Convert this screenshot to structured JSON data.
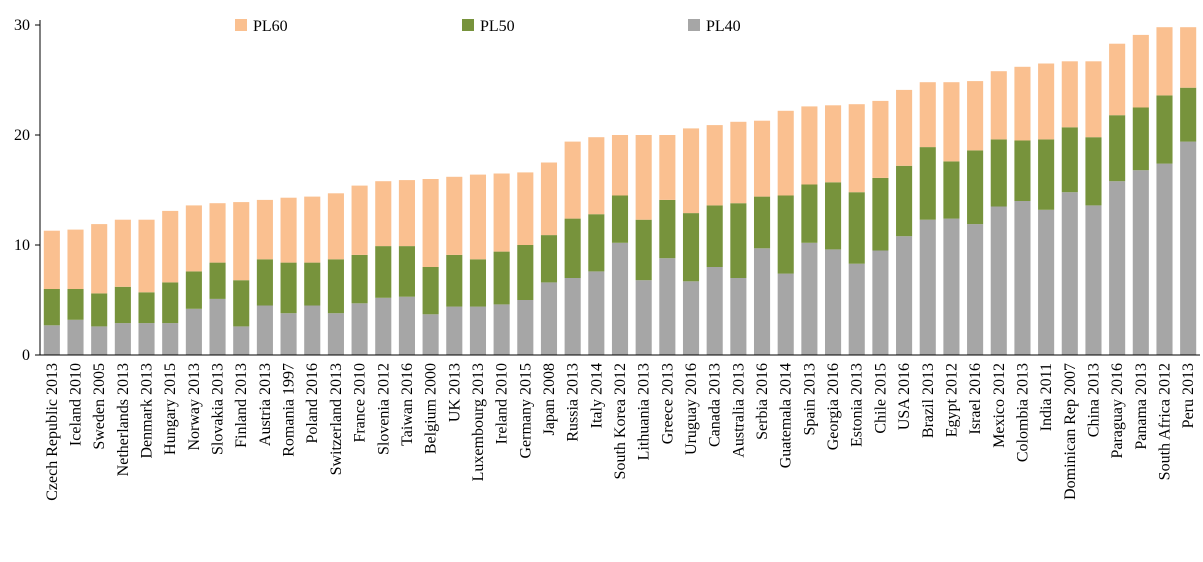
{
  "chart_data": {
    "type": "stacked_bar",
    "categories": [
      "Czech Republic 2013",
      "Iceland 2010",
      "Sweden 2005",
      "Netherlands 2013",
      "Denmark 2013",
      "Hungary 2015",
      "Norway 2013",
      "Slovakia 2013",
      "Finland 2013",
      "Austria 2013",
      "Romania 1997",
      "Poland 2016",
      "Switzerland 2013",
      "France 2010",
      "Slovenia 2012",
      "Taiwan 2016",
      "Belgium 2000",
      "UK 2013",
      "Luxembourg 2013",
      "Ireland 2010",
      "Germany 2015",
      "Japan 2008",
      "Russia 2013",
      "Italy 2014",
      "South Korea 2012",
      "Lithuania 2013",
      "Greece 2013",
      "Uruguay 2016",
      "Canada 2013",
      "Australia 2013",
      "Serbia 2016",
      "Guatemala 2014",
      "Spain 2013",
      "Georgia 2016",
      "Estonia 2013",
      "Chile 2015",
      "USA 2016",
      "Brazil 2013",
      "Egypt 2012",
      "Israel 2016",
      "Mexico 2012",
      "Colombia 2013",
      "India 2011",
      "Dominican Rep 2007",
      "China 2013",
      "Paraguay 2016",
      "Panama 2013",
      "South Africa 2012",
      "Peru 2013"
    ],
    "series": [
      {
        "name": "PL40",
        "color": "#a6a6a6",
        "values": [
          2.7,
          3.2,
          2.6,
          2.9,
          2.9,
          2.9,
          4.2,
          5.1,
          2.6,
          4.5,
          3.8,
          4.5,
          3.8,
          4.7,
          5.2,
          5.3,
          3.7,
          4.4,
          4.4,
          4.6,
          5.0,
          6.6,
          7.0,
          7.6,
          10.2,
          6.8,
          8.8,
          6.7,
          8.0,
          7.0,
          9.7,
          7.4,
          10.2,
          9.6,
          8.3,
          9.5,
          10.8,
          12.3,
          12.4,
          11.9,
          13.5,
          14.0,
          13.2,
          14.8,
          13.6,
          15.8,
          16.8,
          17.4,
          19.4
        ]
      },
      {
        "name": "PL50",
        "color": "#77933c",
        "values": [
          3.3,
          2.8,
          3.0,
          3.3,
          2.8,
          3.7,
          3.4,
          3.3,
          4.2,
          4.2,
          4.6,
          3.9,
          4.9,
          4.4,
          4.7,
          4.6,
          4.3,
          4.7,
          4.3,
          4.8,
          5.0,
          4.3,
          5.4,
          5.2,
          4.3,
          5.5,
          5.3,
          6.2,
          5.6,
          6.8,
          4.7,
          7.1,
          5.3,
          6.1,
          6.5,
          6.6,
          6.4,
          6.6,
          5.2,
          6.7,
          6.1,
          5.5,
          6.4,
          5.9,
          6.2,
          6.0,
          5.7,
          6.2,
          4.9
        ]
      },
      {
        "name": "PL60",
        "color": "#fac090",
        "values": [
          5.3,
          5.4,
          6.3,
          6.1,
          6.6,
          6.5,
          6.0,
          5.4,
          7.1,
          5.4,
          5.9,
          6.0,
          6.0,
          6.3,
          5.9,
          6.0,
          8.0,
          7.1,
          7.7,
          7.1,
          6.6,
          6.6,
          7.0,
          7.0,
          5.5,
          7.7,
          5.9,
          7.7,
          7.3,
          7.4,
          6.9,
          7.7,
          7.1,
          7.0,
          8.0,
          7.0,
          6.9,
          5.9,
          7.2,
          6.3,
          6.2,
          6.7,
          6.9,
          6.0,
          6.9,
          6.5,
          6.6,
          6.2,
          5.5
        ]
      }
    ],
    "ylim": [
      0,
      30
    ],
    "yticks": [
      0,
      10,
      20,
      30
    ],
    "grid": false
  }
}
